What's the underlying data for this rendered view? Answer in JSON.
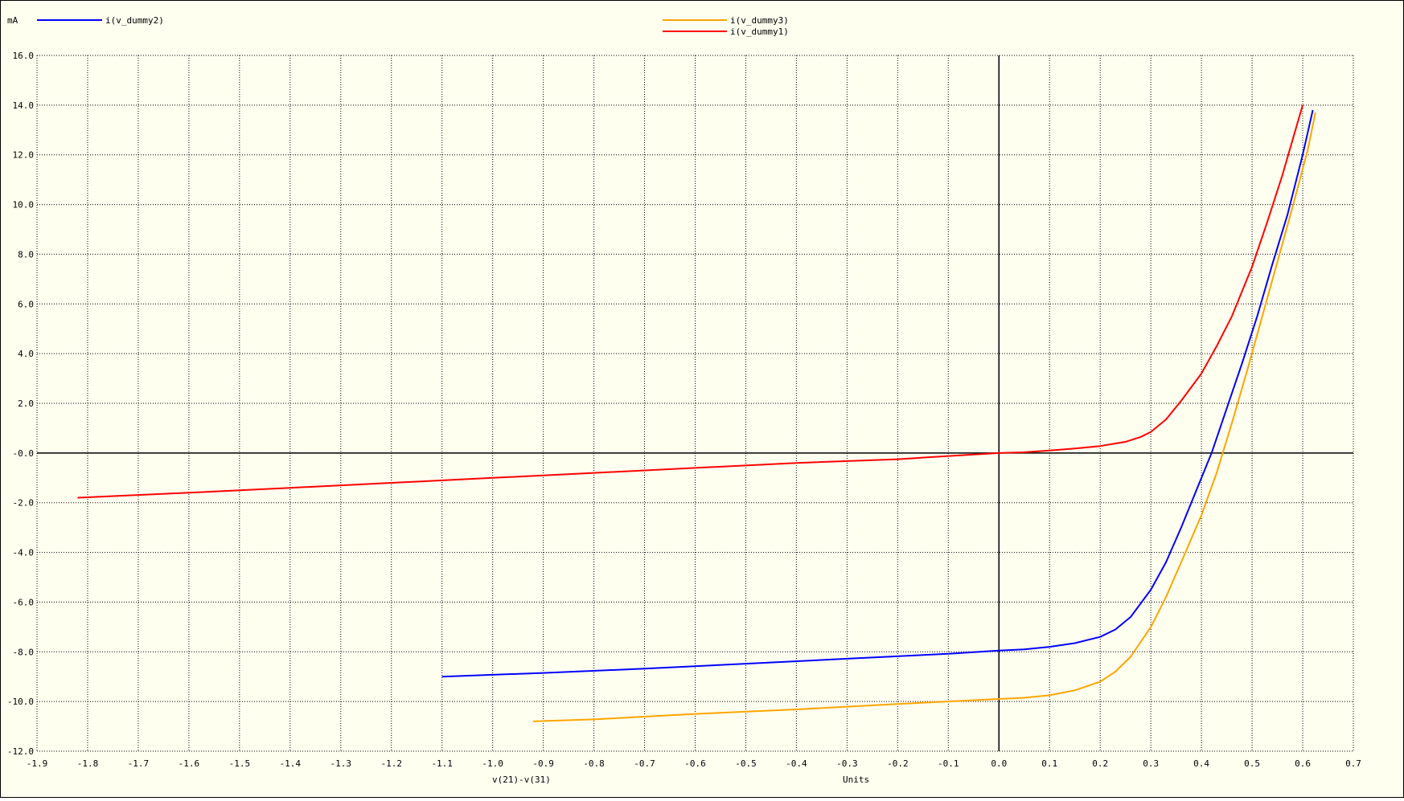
{
  "window": {
    "background": "#fffff0"
  },
  "chart_data": {
    "type": "line",
    "xlabel": "v(21)-v(31)",
    "xunits": "Units",
    "yunits": "mA",
    "xlim": [
      -1.9,
      0.7
    ],
    "ylim": [
      -12.0,
      16.0
    ],
    "xticks": [
      -1.9,
      -1.8,
      -1.7,
      -1.6,
      -1.5,
      -1.4,
      -1.3,
      -1.2,
      -1.1,
      -1.0,
      -0.9,
      -0.8,
      -0.7,
      -0.6,
      -0.5,
      -0.4,
      -0.3,
      -0.2,
      -0.1,
      0.0,
      0.1,
      0.2,
      0.3,
      0.4,
      0.5,
      0.6,
      0.7
    ],
    "xtick_labels": [
      "-1.9",
      "-1.8",
      "-1.7",
      "-1.6",
      "-1.5",
      "-1.4",
      "-1.3",
      "-1.2",
      "-1.1",
      "-1.0",
      "-0.9",
      "-0.8",
      "-0.7",
      "-0.6",
      "-0.5",
      "-0.4",
      "-0.3",
      "-0.2",
      "-0.1",
      "0.0",
      "0.1",
      "0.2",
      "0.3",
      "0.4",
      "0.5",
      "0.6",
      "0.7"
    ],
    "yticks": [
      16,
      14,
      12,
      10,
      8,
      6,
      4,
      2,
      0,
      -2,
      -4,
      -6,
      -8,
      -10,
      -12
    ],
    "ytick_labels": [
      "16.0",
      "14.0",
      "12.0",
      "10.0",
      "8.0",
      "6.0",
      "4.0",
      "2.0",
      "-0.0",
      "-2.0",
      "-4.0",
      "-6.0",
      "-8.0",
      "-10.0",
      "-12.0"
    ],
    "grid": true,
    "legend": [
      {
        "name": "i(v_dummy2)",
        "color": "#0000ff"
      },
      {
        "name": "i(v_dummy3)",
        "color": "#ffa500"
      },
      {
        "name": "i(v_dummy1)",
        "color": "#ff0000"
      }
    ],
    "series": [
      {
        "name": "i(v_dummy1)",
        "color": "#ff0000",
        "points": [
          [
            -1.82,
            -1.8
          ],
          [
            -1.6,
            -1.6
          ],
          [
            -1.4,
            -1.4
          ],
          [
            -1.2,
            -1.2
          ],
          [
            -1.0,
            -1.0
          ],
          [
            -0.8,
            -0.8
          ],
          [
            -0.6,
            -0.6
          ],
          [
            -0.4,
            -0.4
          ],
          [
            -0.2,
            -0.25
          ],
          [
            -0.1,
            -0.12
          ],
          [
            0.0,
            0.0
          ],
          [
            0.05,
            0.03
          ],
          [
            0.1,
            0.1
          ],
          [
            0.15,
            0.18
          ],
          [
            0.2,
            0.28
          ],
          [
            0.25,
            0.45
          ],
          [
            0.28,
            0.65
          ],
          [
            0.3,
            0.85
          ],
          [
            0.33,
            1.35
          ],
          [
            0.36,
            2.1
          ],
          [
            0.4,
            3.2
          ],
          [
            0.43,
            4.3
          ],
          [
            0.46,
            5.5
          ],
          [
            0.5,
            7.5
          ],
          [
            0.53,
            9.3
          ],
          [
            0.56,
            11.2
          ],
          [
            0.58,
            12.6
          ],
          [
            0.6,
            14.0
          ]
        ]
      },
      {
        "name": "i(v_dummy2)",
        "color": "#0000ff",
        "points": [
          [
            -1.1,
            -9.0
          ],
          [
            -0.9,
            -8.85
          ],
          [
            -0.7,
            -8.68
          ],
          [
            -0.5,
            -8.48
          ],
          [
            -0.3,
            -8.28
          ],
          [
            -0.1,
            -8.08
          ],
          [
            0.0,
            -7.95
          ],
          [
            0.05,
            -7.9
          ],
          [
            0.1,
            -7.8
          ],
          [
            0.15,
            -7.65
          ],
          [
            0.2,
            -7.4
          ],
          [
            0.23,
            -7.1
          ],
          [
            0.26,
            -6.6
          ],
          [
            0.3,
            -5.5
          ],
          [
            0.33,
            -4.4
          ],
          [
            0.36,
            -3.0
          ],
          [
            0.39,
            -1.5
          ],
          [
            0.42,
            0.0
          ],
          [
            0.45,
            1.8
          ],
          [
            0.48,
            3.6
          ],
          [
            0.51,
            5.5
          ],
          [
            0.54,
            7.6
          ],
          [
            0.57,
            9.6
          ],
          [
            0.6,
            12.0
          ],
          [
            0.62,
            13.8
          ]
        ]
      },
      {
        "name": "i(v_dummy3)",
        "color": "#ffa500",
        "points": [
          [
            -0.92,
            -10.8
          ],
          [
            -0.8,
            -10.72
          ],
          [
            -0.6,
            -10.5
          ],
          [
            -0.4,
            -10.32
          ],
          [
            -0.2,
            -10.1
          ],
          [
            -0.1,
            -10.0
          ],
          [
            0.0,
            -9.9
          ],
          [
            0.05,
            -9.85
          ],
          [
            0.1,
            -9.75
          ],
          [
            0.15,
            -9.55
          ],
          [
            0.2,
            -9.2
          ],
          [
            0.23,
            -8.8
          ],
          [
            0.26,
            -8.2
          ],
          [
            0.3,
            -7.0
          ],
          [
            0.33,
            -5.8
          ],
          [
            0.36,
            -4.4
          ],
          [
            0.4,
            -2.5
          ],
          [
            0.43,
            -0.8
          ],
          [
            0.46,
            1.2
          ],
          [
            0.49,
            3.3
          ],
          [
            0.52,
            5.5
          ],
          [
            0.55,
            7.7
          ],
          [
            0.58,
            9.9
          ],
          [
            0.61,
            12.2
          ],
          [
            0.625,
            13.7
          ]
        ]
      }
    ]
  }
}
